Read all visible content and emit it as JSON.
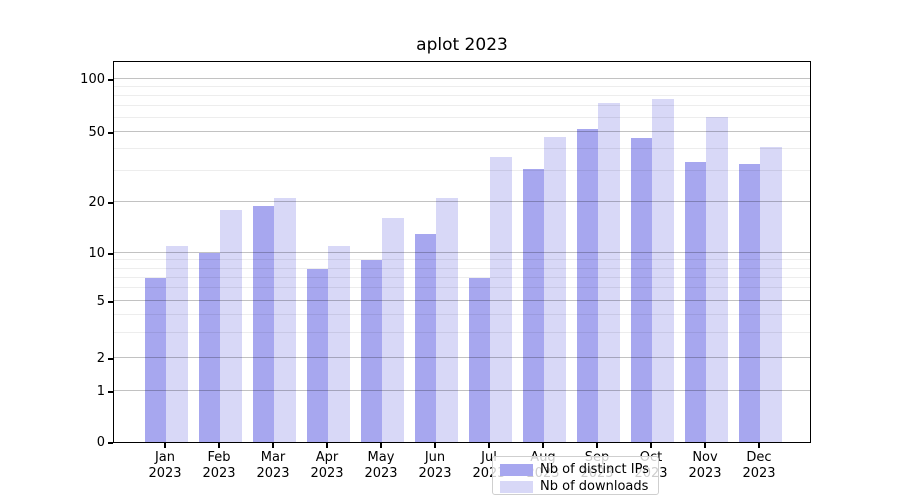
{
  "title": "aplot 2023",
  "colors": {
    "ips_bar": "#a7a7ef",
    "downloads_bar": "#d8d8f7",
    "spine": "#000000",
    "grid_major": "#c2c2c2",
    "grid_minor": "#ededed",
    "legend_border": "#cfcfcf",
    "background": "#ffffff"
  },
  "chart_data": {
    "type": "bar",
    "title": "aplot 2023",
    "categories": [
      "Jan 2023",
      "Feb 2023",
      "Mar 2023",
      "Apr 2023",
      "May 2023",
      "Jun 2023",
      "Jul 2023",
      "Aug 2023",
      "Sep 2023",
      "Oct 2023",
      "Nov 2023",
      "Dec 2023"
    ],
    "month_names": [
      "Jan",
      "Feb",
      "Mar",
      "Apr",
      "May",
      "Jun",
      "Jul",
      "Aug",
      "Sep",
      "Oct",
      "Nov",
      "Dec"
    ],
    "year_label": "2023",
    "series": [
      {
        "name": "Nb of distinct IPs",
        "color": "#a7a7ef",
        "values": [
          7,
          10,
          19,
          8,
          9,
          13,
          7,
          31,
          52,
          46,
          34,
          33
        ]
      },
      {
        "name": "Nb of downloads",
        "color": "#d8d8f7",
        "values": [
          11,
          18,
          21,
          11,
          16,
          21,
          36,
          47,
          73,
          77,
          61,
          41
        ]
      }
    ],
    "xlabel": "",
    "ylabel": "",
    "yscale": "symlog",
    "yticks": [
      0,
      1,
      2,
      5,
      10,
      20,
      50,
      100
    ],
    "ytick_labels": [
      "0",
      "1",
      "2",
      "5",
      "10",
      "20",
      "50",
      "100"
    ],
    "minor_yticks": [
      3,
      4,
      6,
      7,
      8,
      9,
      30,
      40,
      60,
      70,
      80,
      90
    ],
    "ylim": [
      0,
      126
    ],
    "grid": true,
    "grid_above_bars": true,
    "legend_position": "lower center"
  },
  "legend": {
    "items": [
      {
        "label": "Nb of distinct IPs",
        "color": "#a7a7ef"
      },
      {
        "label": "Nb of downloads",
        "color": "#d8d8f7"
      }
    ]
  }
}
